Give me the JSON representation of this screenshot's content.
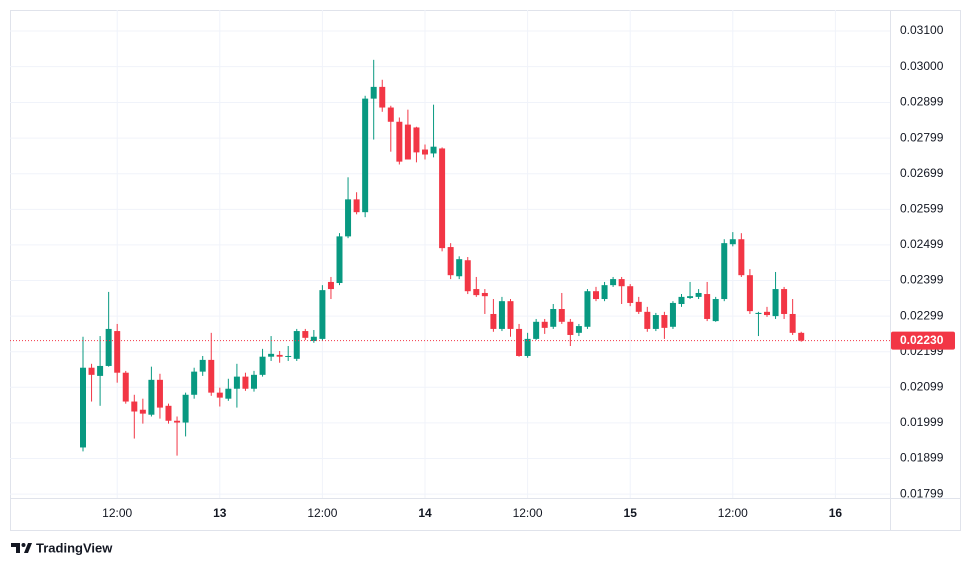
{
  "chart_data": {
    "type": "candlestick",
    "categories": [
      null,
      null,
      null,
      null,
      "12:00",
      null,
      null,
      null,
      null,
      null,
      null,
      null,
      null,
      null,
      null,
      null,
      "13",
      null,
      null,
      null,
      null,
      null,
      null,
      null,
      null,
      null,
      null,
      null,
      "12:00",
      null,
      null,
      null,
      null,
      null,
      null,
      null,
      null,
      null,
      null,
      null,
      "14",
      null,
      null,
      null,
      null,
      null,
      null,
      null,
      null,
      null,
      null,
      null,
      "12:00",
      null,
      null,
      null,
      null,
      null,
      null,
      null,
      null,
      null,
      null,
      null,
      "15",
      null,
      null,
      null,
      null,
      null,
      null,
      null,
      null,
      null,
      null,
      null,
      "12:00",
      null,
      null,
      null,
      null,
      null,
      null,
      null,
      null,
      null,
      null,
      null,
      "16"
    ],
    "open": [
      0.0193,
      0.02154,
      0.02131,
      0.02159,
      0.02257,
      0.0214,
      0.02059,
      0.02036,
      0.02022,
      0.0212,
      0.02047,
      0.02005,
      0.02,
      0.02078,
      0.02143,
      0.02176,
      0.02084,
      0.02067,
      0.02095,
      0.02129,
      0.02095,
      0.02134,
      0.02185,
      0.0219,
      0.02185,
      0.02179,
      0.02257,
      0.02229,
      0.02235,
      0.02395,
      0.02392,
      0.02523,
      0.02627,
      0.02591,
      0.0291,
      0.02943,
      0.02885,
      0.02845,
      0.02837,
      0.02829,
      0.02767,
      0.02756,
      0.0277,
      0.02493,
      0.02411,
      0.02456,
      0.02375,
      0.02364,
      0.02305,
      0.02263,
      0.02341,
      0.02263,
      0.02187,
      0.02235,
      0.02283,
      0.02269,
      0.02319,
      0.02283,
      0.02252,
      0.02269,
      0.02369,
      0.02347,
      0.02386,
      0.02403,
      0.02383,
      0.02339,
      0.02311,
      0.02263,
      0.02302,
      0.02269,
      0.02333,
      0.0235,
      0.02353,
      0.02361,
      0.02285,
      0.02347,
      0.02501,
      0.02515,
      0.02414,
      0.02305,
      0.02311,
      0.02299,
      0.02375,
      0.02305,
      0.02252,
      null,
      null,
      null,
      null
    ],
    "high": [
      0.02241,
      0.02165,
      0.02243,
      0.02367,
      0.02277,
      0.02145,
      0.02078,
      0.02067,
      0.02157,
      0.02137,
      0.02053,
      0.02017,
      0.02084,
      0.02154,
      0.02187,
      0.02252,
      0.02098,
      0.02123,
      0.02165,
      0.0214,
      0.02145,
      0.02207,
      0.02243,
      0.02201,
      0.02215,
      0.02263,
      0.02263,
      0.0226,
      0.02386,
      0.02409,
      0.02532,
      0.02689,
      0.02647,
      0.02918,
      0.03019,
      0.02963,
      0.0289,
      0.02857,
      0.02879,
      0.02831,
      0.02781,
      0.02893,
      0.02773,
      0.02504,
      0.02467,
      0.02465,
      0.02409,
      0.02375,
      0.02347,
      0.02353,
      0.02347,
      0.02277,
      0.02252,
      0.02291,
      0.02291,
      0.02333,
      0.02364,
      0.02291,
      0.02277,
      0.02375,
      0.02381,
      0.02395,
      0.02409,
      0.02409,
      0.02389,
      0.02353,
      0.02325,
      0.02308,
      0.02311,
      0.02341,
      0.02361,
      0.02395,
      0.02375,
      0.02395,
      0.02353,
      0.02515,
      0.02535,
      0.02532,
      0.02431,
      0.02311,
      0.02325,
      0.02423,
      0.02381,
      0.02347,
      0.02255,
      null,
      null,
      null,
      null
    ],
    "low": [
      0.01919,
      0.02059,
      0.02047,
      0.02157,
      0.02112,
      0.02053,
      0.01955,
      0.01997,
      0.02017,
      0.02011,
      0.01997,
      0.01907,
      0.01961,
      0.02067,
      0.02131,
      0.02075,
      0.02045,
      0.02061,
      0.02042,
      0.02089,
      0.02087,
      0.02129,
      0.02173,
      0.02168,
      0.02173,
      0.02173,
      0.02232,
      0.02224,
      0.02229,
      0.02347,
      0.02386,
      0.02518,
      0.02585,
      0.02577,
      0.02795,
      0.02873,
      0.02761,
      0.02725,
      0.02739,
      0.02731,
      0.02739,
      0.02745,
      0.02481,
      0.02403,
      0.02403,
      0.02361,
      0.02353,
      0.02305,
      0.02255,
      0.02257,
      0.02241,
      0.02185,
      0.02182,
      0.02232,
      0.02249,
      0.02263,
      0.02277,
      0.02215,
      0.02243,
      0.02263,
      0.02341,
      0.02341,
      0.02381,
      0.02333,
      0.02327,
      0.02305,
      0.02255,
      0.02257,
      0.02235,
      0.02263,
      0.02325,
      0.02347,
      0.02347,
      0.02285,
      0.02283,
      0.02341,
      0.02495,
      0.02409,
      0.02305,
      0.02243,
      0.02297,
      0.02291,
      0.02291,
      0.02246,
      0.02227,
      null,
      null,
      null,
      null
    ],
    "close": [
      0.02154,
      0.02134,
      0.02159,
      0.02263,
      0.0214,
      0.02059,
      0.02031,
      0.02025,
      0.0212,
      0.02042,
      0.02005,
      0.02,
      0.02078,
      0.02143,
      0.02176,
      0.02084,
      0.0207,
      0.02095,
      0.02129,
      0.02095,
      0.02134,
      0.02185,
      0.02193,
      0.02185,
      0.02187,
      0.02257,
      0.02238,
      0.02241,
      0.02372,
      0.02375,
      0.02523,
      0.02627,
      0.02591,
      0.0291,
      0.02943,
      0.02885,
      0.02845,
      0.02733,
      0.02739,
      0.02759,
      0.02753,
      0.02775,
      0.0249,
      0.02414,
      0.02459,
      0.02369,
      0.02358,
      0.02355,
      0.02263,
      0.02341,
      0.02263,
      0.02187,
      0.02235,
      0.02283,
      0.02266,
      0.02319,
      0.02283,
      0.02246,
      0.02271,
      0.02369,
      0.02347,
      0.02386,
      0.02403,
      0.02383,
      0.02336,
      0.02311,
      0.02263,
      0.02302,
      0.02266,
      0.02336,
      0.02353,
      0.02355,
      0.02364,
      0.02291,
      0.02347,
      0.02504,
      0.02515,
      0.02414,
      0.02313,
      0.02308,
      0.02302,
      0.02375,
      0.02305,
      0.02252,
      0.0223,
      null,
      null,
      null,
      null
    ],
    "up_color": "#089981",
    "down_color": "#f23645",
    "ylim": [
      0.01788,
      0.03159
    ],
    "yticks": [
      {
        "value": 0.01799,
        "label": "0.01799"
      },
      {
        "value": 0.01899,
        "label": "0.01899"
      },
      {
        "value": 0.01999,
        "label": "0.01999"
      },
      {
        "value": 0.02099,
        "label": "0.02099"
      },
      {
        "value": 0.02199,
        "label": "0.02199"
      },
      {
        "value": 0.02299,
        "label": "0.02299"
      },
      {
        "value": 0.02399,
        "label": "0.02399"
      },
      {
        "value": 0.02499,
        "label": "0.02499"
      },
      {
        "value": 0.02599,
        "label": "0.02599"
      },
      {
        "value": 0.02699,
        "label": "0.02699"
      },
      {
        "value": 0.02799,
        "label": "0.02799"
      },
      {
        "value": 0.02899,
        "label": "0.02899"
      },
      {
        "value": 0.03,
        "label": "0.03000"
      },
      {
        "value": 0.031,
        "label": "0.03100"
      }
    ],
    "last_price": {
      "value": 0.0223,
      "label": "0.02230"
    },
    "grid": true
  },
  "branding": "TradingView"
}
